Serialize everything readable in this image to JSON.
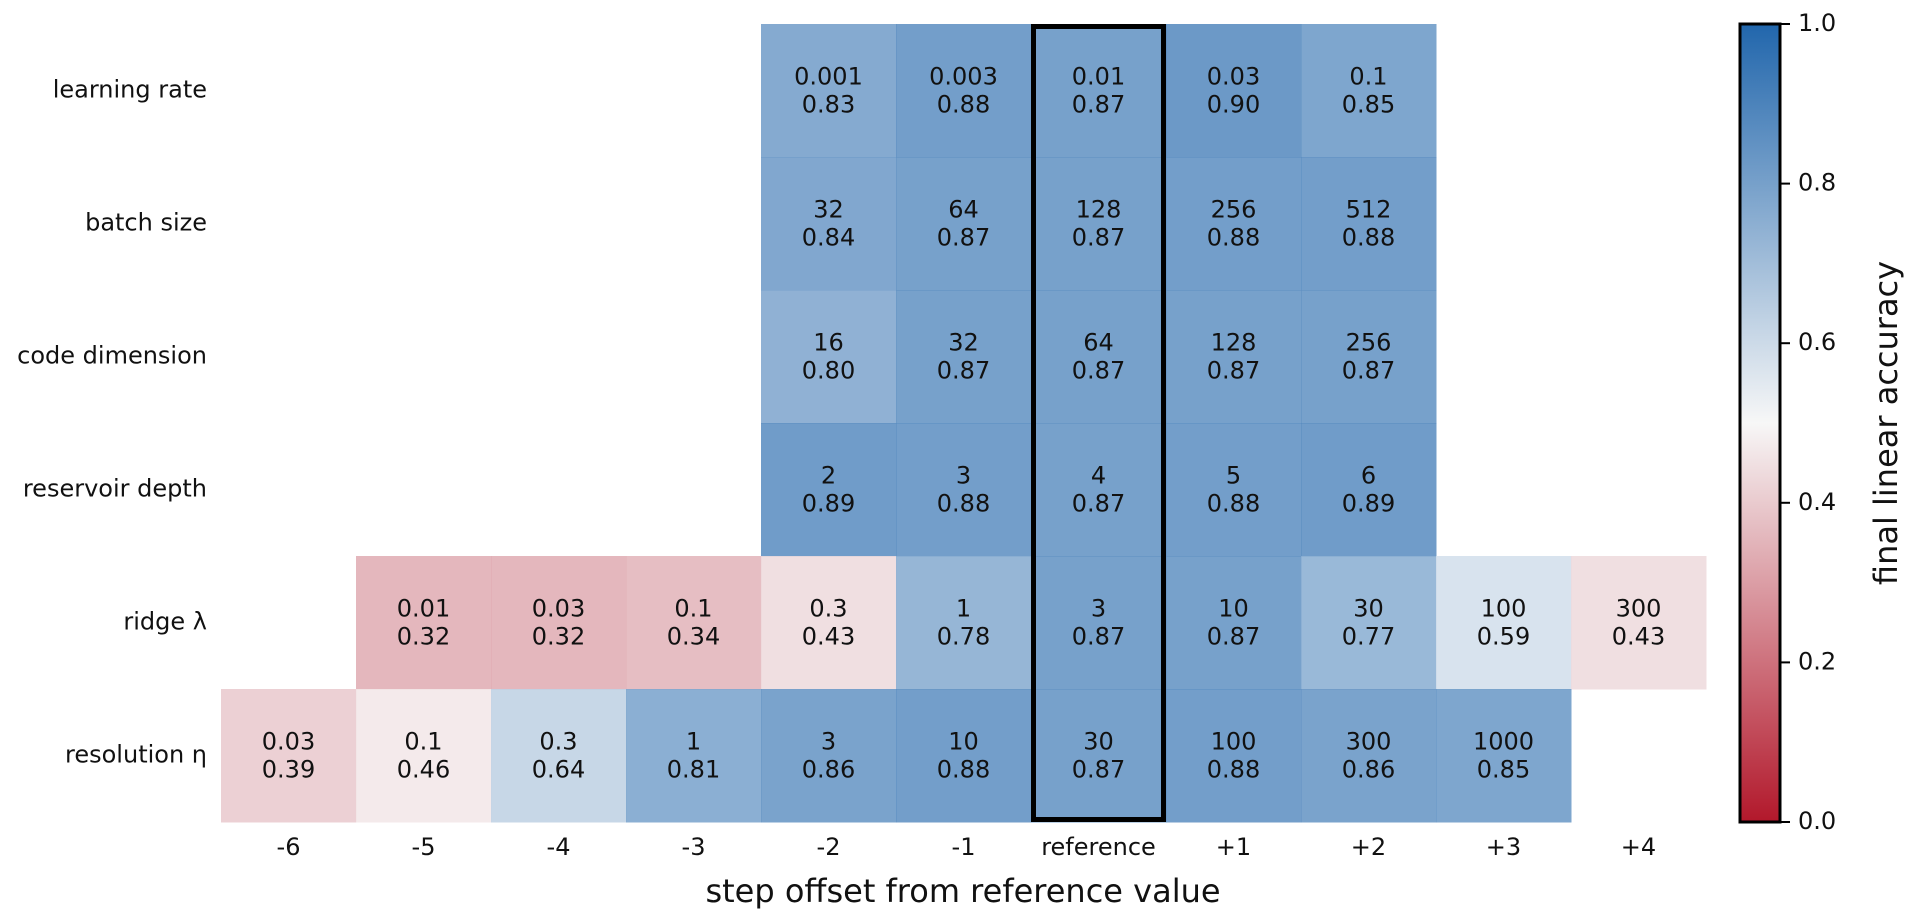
{
  "chart_data": {
    "type": "heatmap",
    "xlabel": "step offset from reference value",
    "x_ticks": [
      "-6",
      "-5",
      "-4",
      "-3",
      "-2",
      "-1",
      "reference",
      "+1",
      "+2",
      "+3",
      "+4"
    ],
    "rows": [
      {
        "label": "learning rate",
        "cells": [
          {
            "offset": "-2",
            "value": "0.001",
            "accuracy": 0.83
          },
          {
            "offset": "-1",
            "value": "0.003",
            "accuracy": 0.88
          },
          {
            "offset": "reference",
            "value": "0.01",
            "accuracy": 0.87
          },
          {
            "offset": "+1",
            "value": "0.03",
            "accuracy": 0.9
          },
          {
            "offset": "+2",
            "value": "0.1",
            "accuracy": 0.85
          }
        ]
      },
      {
        "label": "batch size",
        "cells": [
          {
            "offset": "-2",
            "value": "32",
            "accuracy": 0.84
          },
          {
            "offset": "-1",
            "value": "64",
            "accuracy": 0.87
          },
          {
            "offset": "reference",
            "value": "128",
            "accuracy": 0.87
          },
          {
            "offset": "+1",
            "value": "256",
            "accuracy": 0.88
          },
          {
            "offset": "+2",
            "value": "512",
            "accuracy": 0.88
          }
        ]
      },
      {
        "label": "code dimension",
        "cells": [
          {
            "offset": "-2",
            "value": "16",
            "accuracy": 0.8
          },
          {
            "offset": "-1",
            "value": "32",
            "accuracy": 0.87
          },
          {
            "offset": "reference",
            "value": "64",
            "accuracy": 0.87
          },
          {
            "offset": "+1",
            "value": "128",
            "accuracy": 0.87
          },
          {
            "offset": "+2",
            "value": "256",
            "accuracy": 0.87
          }
        ]
      },
      {
        "label": "reservoir depth",
        "cells": [
          {
            "offset": "-2",
            "value": "2",
            "accuracy": 0.89
          },
          {
            "offset": "-1",
            "value": "3",
            "accuracy": 0.88
          },
          {
            "offset": "reference",
            "value": "4",
            "accuracy": 0.87
          },
          {
            "offset": "+1",
            "value": "5",
            "accuracy": 0.88
          },
          {
            "offset": "+2",
            "value": "6",
            "accuracy": 0.89
          }
        ]
      },
      {
        "label": "ridge λ",
        "cells": [
          {
            "offset": "-5",
            "value": "0.01",
            "accuracy": 0.32
          },
          {
            "offset": "-4",
            "value": "0.03",
            "accuracy": 0.32
          },
          {
            "offset": "-3",
            "value": "0.1",
            "accuracy": 0.34
          },
          {
            "offset": "-2",
            "value": "0.3",
            "accuracy": 0.43
          },
          {
            "offset": "-1",
            "value": "1",
            "accuracy": 0.78
          },
          {
            "offset": "reference",
            "value": "3",
            "accuracy": 0.87
          },
          {
            "offset": "+1",
            "value": "10",
            "accuracy": 0.87
          },
          {
            "offset": "+2",
            "value": "30",
            "accuracy": 0.77
          },
          {
            "offset": "+3",
            "value": "100",
            "accuracy": 0.59
          },
          {
            "offset": "+4",
            "value": "300",
            "accuracy": 0.43
          }
        ]
      },
      {
        "label": "resolution η",
        "cells": [
          {
            "offset": "-6",
            "value": "0.03",
            "accuracy": 0.39
          },
          {
            "offset": "-5",
            "value": "0.1",
            "accuracy": 0.46
          },
          {
            "offset": "-4",
            "value": "0.3",
            "accuracy": 0.64
          },
          {
            "offset": "-3",
            "value": "1",
            "accuracy": 0.81
          },
          {
            "offset": "-2",
            "value": "3",
            "accuracy": 0.86
          },
          {
            "offset": "-1",
            "value": "10",
            "accuracy": 0.88
          },
          {
            "offset": "reference",
            "value": "30",
            "accuracy": 0.87
          },
          {
            "offset": "+1",
            "value": "100",
            "accuracy": 0.88
          },
          {
            "offset": "+2",
            "value": "300",
            "accuracy": 0.86
          },
          {
            "offset": "+3",
            "value": "1000",
            "accuracy": 0.85
          }
        ]
      }
    ],
    "highlighted_column": "reference",
    "colorbar": {
      "label": "final linear accuracy",
      "range": [
        0.0,
        1.0
      ],
      "ticks": [
        "0.0",
        "0.2",
        "0.4",
        "0.6",
        "0.8",
        "1.0"
      ],
      "colormap": "diverging red-white-blue",
      "colors": [
        "#b2182b",
        "#f7f7f7",
        "#2166ac"
      ]
    },
    "legend": "none",
    "grid": false
  }
}
